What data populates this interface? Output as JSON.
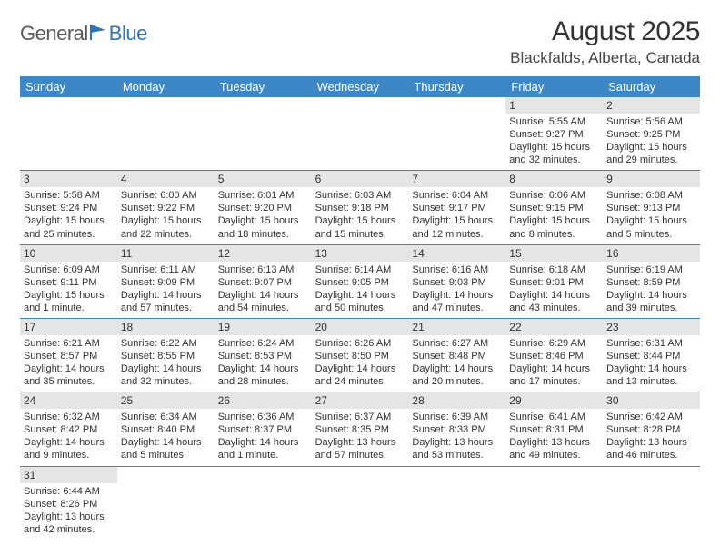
{
  "logo": {
    "general": "General",
    "blue": "Blue"
  },
  "title": "August 2025",
  "location": "Blackfalds, Alberta, Canada",
  "weekday_labels": [
    "Sunday",
    "Monday",
    "Tuesday",
    "Wednesday",
    "Thursday",
    "Friday",
    "Saturday"
  ],
  "colors": {
    "header_bg": "#3d87c7",
    "header_text": "#ffffff",
    "daynum_bg": "#e5e5e5",
    "border": "#3d87c7",
    "logo_gray": "#5a5a5a",
    "logo_blue": "#2f73b6"
  },
  "weeks": [
    [
      null,
      null,
      null,
      null,
      null,
      {
        "n": "1",
        "sr": "Sunrise: 5:55 AM",
        "ss": "Sunset: 9:27 PM",
        "d1": "Daylight: 15 hours",
        "d2": "and 32 minutes."
      },
      {
        "n": "2",
        "sr": "Sunrise: 5:56 AM",
        "ss": "Sunset: 9:25 PM",
        "d1": "Daylight: 15 hours",
        "d2": "and 29 minutes."
      }
    ],
    [
      {
        "n": "3",
        "sr": "Sunrise: 5:58 AM",
        "ss": "Sunset: 9:24 PM",
        "d1": "Daylight: 15 hours",
        "d2": "and 25 minutes."
      },
      {
        "n": "4",
        "sr": "Sunrise: 6:00 AM",
        "ss": "Sunset: 9:22 PM",
        "d1": "Daylight: 15 hours",
        "d2": "and 22 minutes."
      },
      {
        "n": "5",
        "sr": "Sunrise: 6:01 AM",
        "ss": "Sunset: 9:20 PM",
        "d1": "Daylight: 15 hours",
        "d2": "and 18 minutes."
      },
      {
        "n": "6",
        "sr": "Sunrise: 6:03 AM",
        "ss": "Sunset: 9:18 PM",
        "d1": "Daylight: 15 hours",
        "d2": "and 15 minutes."
      },
      {
        "n": "7",
        "sr": "Sunrise: 6:04 AM",
        "ss": "Sunset: 9:17 PM",
        "d1": "Daylight: 15 hours",
        "d2": "and 12 minutes."
      },
      {
        "n": "8",
        "sr": "Sunrise: 6:06 AM",
        "ss": "Sunset: 9:15 PM",
        "d1": "Daylight: 15 hours",
        "d2": "and 8 minutes."
      },
      {
        "n": "9",
        "sr": "Sunrise: 6:08 AM",
        "ss": "Sunset: 9:13 PM",
        "d1": "Daylight: 15 hours",
        "d2": "and 5 minutes."
      }
    ],
    [
      {
        "n": "10",
        "sr": "Sunrise: 6:09 AM",
        "ss": "Sunset: 9:11 PM",
        "d1": "Daylight: 15 hours",
        "d2": "and 1 minute."
      },
      {
        "n": "11",
        "sr": "Sunrise: 6:11 AM",
        "ss": "Sunset: 9:09 PM",
        "d1": "Daylight: 14 hours",
        "d2": "and 57 minutes."
      },
      {
        "n": "12",
        "sr": "Sunrise: 6:13 AM",
        "ss": "Sunset: 9:07 PM",
        "d1": "Daylight: 14 hours",
        "d2": "and 54 minutes."
      },
      {
        "n": "13",
        "sr": "Sunrise: 6:14 AM",
        "ss": "Sunset: 9:05 PM",
        "d1": "Daylight: 14 hours",
        "d2": "and 50 minutes."
      },
      {
        "n": "14",
        "sr": "Sunrise: 6:16 AM",
        "ss": "Sunset: 9:03 PM",
        "d1": "Daylight: 14 hours",
        "d2": "and 47 minutes."
      },
      {
        "n": "15",
        "sr": "Sunrise: 6:18 AM",
        "ss": "Sunset: 9:01 PM",
        "d1": "Daylight: 14 hours",
        "d2": "and 43 minutes."
      },
      {
        "n": "16",
        "sr": "Sunrise: 6:19 AM",
        "ss": "Sunset: 8:59 PM",
        "d1": "Daylight: 14 hours",
        "d2": "and 39 minutes."
      }
    ],
    [
      {
        "n": "17",
        "sr": "Sunrise: 6:21 AM",
        "ss": "Sunset: 8:57 PM",
        "d1": "Daylight: 14 hours",
        "d2": "and 35 minutes."
      },
      {
        "n": "18",
        "sr": "Sunrise: 6:22 AM",
        "ss": "Sunset: 8:55 PM",
        "d1": "Daylight: 14 hours",
        "d2": "and 32 minutes."
      },
      {
        "n": "19",
        "sr": "Sunrise: 6:24 AM",
        "ss": "Sunset: 8:53 PM",
        "d1": "Daylight: 14 hours",
        "d2": "and 28 minutes."
      },
      {
        "n": "20",
        "sr": "Sunrise: 6:26 AM",
        "ss": "Sunset: 8:50 PM",
        "d1": "Daylight: 14 hours",
        "d2": "and 24 minutes."
      },
      {
        "n": "21",
        "sr": "Sunrise: 6:27 AM",
        "ss": "Sunset: 8:48 PM",
        "d1": "Daylight: 14 hours",
        "d2": "and 20 minutes."
      },
      {
        "n": "22",
        "sr": "Sunrise: 6:29 AM",
        "ss": "Sunset: 8:46 PM",
        "d1": "Daylight: 14 hours",
        "d2": "and 17 minutes."
      },
      {
        "n": "23",
        "sr": "Sunrise: 6:31 AM",
        "ss": "Sunset: 8:44 PM",
        "d1": "Daylight: 14 hours",
        "d2": "and 13 minutes."
      }
    ],
    [
      {
        "n": "24",
        "sr": "Sunrise: 6:32 AM",
        "ss": "Sunset: 8:42 PM",
        "d1": "Daylight: 14 hours",
        "d2": "and 9 minutes."
      },
      {
        "n": "25",
        "sr": "Sunrise: 6:34 AM",
        "ss": "Sunset: 8:40 PM",
        "d1": "Daylight: 14 hours",
        "d2": "and 5 minutes."
      },
      {
        "n": "26",
        "sr": "Sunrise: 6:36 AM",
        "ss": "Sunset: 8:37 PM",
        "d1": "Daylight: 14 hours",
        "d2": "and 1 minute."
      },
      {
        "n": "27",
        "sr": "Sunrise: 6:37 AM",
        "ss": "Sunset: 8:35 PM",
        "d1": "Daylight: 13 hours",
        "d2": "and 57 minutes."
      },
      {
        "n": "28",
        "sr": "Sunrise: 6:39 AM",
        "ss": "Sunset: 8:33 PM",
        "d1": "Daylight: 13 hours",
        "d2": "and 53 minutes."
      },
      {
        "n": "29",
        "sr": "Sunrise: 6:41 AM",
        "ss": "Sunset: 8:31 PM",
        "d1": "Daylight: 13 hours",
        "d2": "and 49 minutes."
      },
      {
        "n": "30",
        "sr": "Sunrise: 6:42 AM",
        "ss": "Sunset: 8:28 PM",
        "d1": "Daylight: 13 hours",
        "d2": "and 46 minutes."
      }
    ],
    [
      {
        "n": "31",
        "sr": "Sunrise: 6:44 AM",
        "ss": "Sunset: 8:26 PM",
        "d1": "Daylight: 13 hours",
        "d2": "and 42 minutes."
      },
      null,
      null,
      null,
      null,
      null,
      null
    ]
  ]
}
